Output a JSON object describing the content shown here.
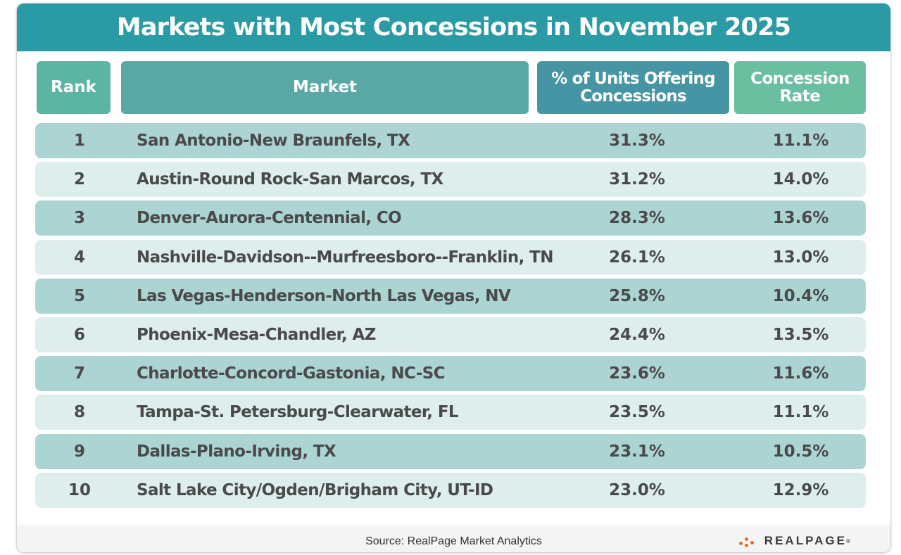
{
  "title": "Markets with Most Concessions in November 2025",
  "headers": {
    "rank": "Rank",
    "market": "Market",
    "pct_line1": "% of Units Offering",
    "pct_line2": "Concessions",
    "rate_line1": "Concession",
    "rate_line2": "Rate"
  },
  "footer": {
    "source": "Source:  RealPage Market Analytics",
    "logo_text": "REALPAGE",
    "logo_mark": "®"
  },
  "colors": {
    "title_bar": "#2a9aa5",
    "row_dark": "#acd4d3",
    "row_light": "#deeeed",
    "logo_accent": "#f26b21"
  },
  "chart_data": {
    "type": "table",
    "title": "Markets with Most Concessions in November 2025",
    "columns": [
      "Rank",
      "Market",
      "% of Units Offering Concessions",
      "Concession Rate"
    ],
    "rows": [
      {
        "rank": "1",
        "market": "San Antonio-New Braunfels, TX",
        "pct": "31.3%",
        "rate": "11.1%"
      },
      {
        "rank": "2",
        "market": "Austin-Round Rock-San Marcos, TX",
        "pct": "31.2%",
        "rate": "14.0%"
      },
      {
        "rank": "3",
        "market": "Denver-Aurora-Centennial, CO",
        "pct": "28.3%",
        "rate": "13.6%"
      },
      {
        "rank": "4",
        "market": "Nashville-Davidson--Murfreesboro--Franklin, TN",
        "pct": "26.1%",
        "rate": "13.0%"
      },
      {
        "rank": "5",
        "market": "Las Vegas-Henderson-North Las Vegas, NV",
        "pct": "25.8%",
        "rate": "10.4%"
      },
      {
        "rank": "6",
        "market": "Phoenix-Mesa-Chandler, AZ",
        "pct": "24.4%",
        "rate": "13.5%"
      },
      {
        "rank": "7",
        "market": "Charlotte-Concord-Gastonia, NC-SC",
        "pct": "23.6%",
        "rate": "11.6%"
      },
      {
        "rank": "8",
        "market": "Tampa-St. Petersburg-Clearwater, FL",
        "pct": "23.5%",
        "rate": "11.1%"
      },
      {
        "rank": "9",
        "market": "Dallas-Plano-Irving, TX",
        "pct": "23.1%",
        "rate": "10.5%"
      },
      {
        "rank": "10",
        "market": "Salt Lake City/Ogden/Brigham City, UT-ID",
        "pct": "23.0%",
        "rate": "12.9%"
      }
    ]
  }
}
